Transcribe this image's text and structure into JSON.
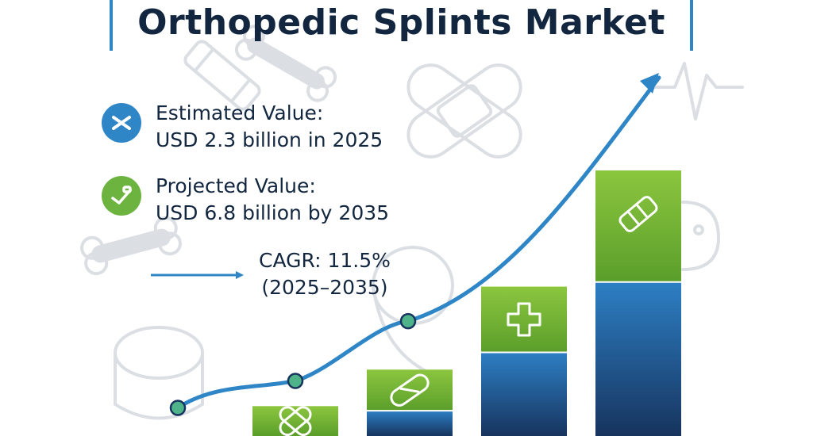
{
  "header": {
    "title": "Orthopedic Splints Market"
  },
  "stats": {
    "estimated_label": "Estimated Value:",
    "estimated_value": "USD 2.3 billion in 2025",
    "projected_label": "Projected Value:",
    "projected_value": "USD 6.8 billion by 2035",
    "cagr_label": "CAGR: 11.5%",
    "cagr_period": "(2025–2035)"
  },
  "icons": {
    "estimated": "crossed-splints-icon",
    "projected": "splint-applicator-icon",
    "bar_icons": [
      "crossed-bandage-icon",
      "bandage-icon",
      "plus-cross-icon",
      "splint-wrap-icon"
    ]
  },
  "colors": {
    "title": "#12263f",
    "accent_blue": "#2f86c6",
    "bar_green_top": "#8cc63f",
    "bar_green_bottom": "#5a9e2a",
    "bar_blue_top": "#2d7fc4",
    "bar_blue_bottom": "#17345e",
    "trend_line": "#2f86c6",
    "marker_fill": "#4fb38a"
  },
  "chart_data": {
    "type": "bar",
    "categories": [
      "",
      "",
      "",
      ""
    ],
    "values": [
      0.9,
      2.0,
      4.5,
      8.0
    ],
    "green_share": [
      1.0,
      0.62,
      0.44,
      0.42
    ],
    "trend_points": [
      0.2,
      1.1,
      3.1,
      6.7
    ],
    "ylim": [
      0,
      8
    ],
    "grid": false,
    "legend": "none",
    "title": "",
    "xlabel": "",
    "ylabel": ""
  }
}
